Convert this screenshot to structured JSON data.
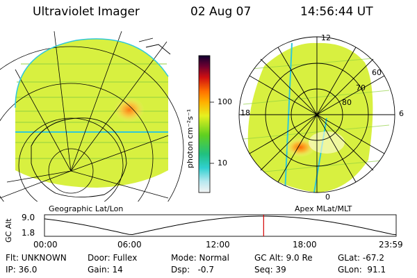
{
  "header": {
    "title": "Ultraviolet Imager",
    "date": "02 Aug 07",
    "time": "14:56:44 UT"
  },
  "colorbar": {
    "label": "photon cm⁻²s⁻¹",
    "ticks": [
      {
        "value": 100,
        "label": "100"
      },
      {
        "value": 10,
        "label": "10"
      }
    ],
    "scale": "log"
  },
  "left_panel": {
    "caption": "Geographic Lat/Lon"
  },
  "right_panel": {
    "caption": "Apex MLat/MLT",
    "mlt_labels": {
      "top": "12",
      "left": "18",
      "right": "6",
      "bottom": "0"
    },
    "lat_labels": [
      "60",
      "70",
      "80"
    ]
  },
  "altitude_strip": {
    "ylabel": "GC Alt",
    "yticks": [
      "9.0",
      "1.8"
    ],
    "xticks": [
      "00:00",
      "06:00",
      "12:00",
      "18:00",
      "23:59"
    ],
    "current_time_hours": 14.946
  },
  "info": {
    "row1": {
      "filter": "Flt: UNKNOWN",
      "door": "Door: Fullex",
      "mode": "Mode: Normal",
      "gc_alt": "GC Alt: 9.0 Re",
      "glat": "GLat: -67.2"
    },
    "row2": {
      "ip": "IP: 36.0",
      "gain": "Gain: 14",
      "dsp": "Dsp:   -0.7",
      "seq": "Seq: 39",
      "glon": "GLon:  91.1"
    }
  },
  "colors": {
    "background": "#ffffff",
    "field": "#d4f03a",
    "aurora": "#ff8c1a",
    "time_marker": "#d40000"
  }
}
